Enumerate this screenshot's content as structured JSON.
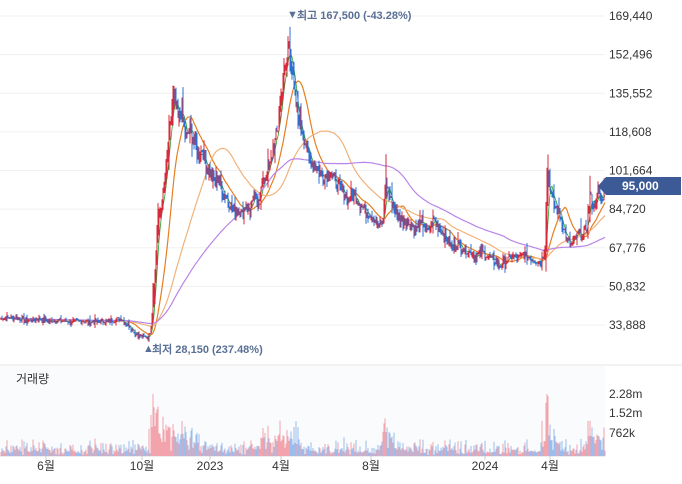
{
  "chart_data": {
    "type": "candlestick",
    "y_ticks": [
      "169,440",
      "152,496",
      "135,552",
      "118,608",
      "101,664",
      "84,720",
      "67,776",
      "50,832",
      "33,888"
    ],
    "y_values": [
      169440,
      152496,
      135552,
      118608,
      101664,
      84720,
      67776,
      50832,
      33888
    ],
    "x_ticks": [
      "6월",
      "10월",
      "2023",
      "4월",
      "8월",
      "2024",
      "4월"
    ],
    "current_price": "95,000",
    "current_value": 95000,
    "high_label": "최고 167,500 (-43.28%)",
    "high_value": 167500,
    "low_label": "최저 28,150 (237.48%)",
    "low_value": 28150,
    "volume": {
      "label": "거래량",
      "ticks": [
        "2.28m",
        "1.52m",
        "762k"
      ]
    },
    "price_series": [
      [
        0,
        36800
      ],
      [
        10,
        37200
      ],
      [
        20,
        36600
      ],
      [
        30,
        35900
      ],
      [
        40,
        36400
      ],
      [
        50,
        35500
      ],
      [
        60,
        35900
      ],
      [
        70,
        35300
      ],
      [
        80,
        35700
      ],
      [
        90,
        35200
      ],
      [
        100,
        35600
      ],
      [
        110,
        35400
      ],
      [
        115,
        36200
      ],
      [
        120,
        36800
      ],
      [
        125,
        34800
      ],
      [
        130,
        33200
      ],
      [
        135,
        30200
      ],
      [
        140,
        29100
      ],
      [
        145,
        28600
      ],
      [
        148,
        28400
      ],
      [
        150,
        30800
      ],
      [
        152,
        36500
      ],
      [
        155,
        58000
      ],
      [
        158,
        78000
      ],
      [
        162,
        88000
      ],
      [
        166,
        100000
      ],
      [
        170,
        120000
      ],
      [
        174,
        134000
      ],
      [
        178,
        124000
      ],
      [
        182,
        128000
      ],
      [
        186,
        115000
      ],
      [
        190,
        121000
      ],
      [
        194,
        114000
      ],
      [
        198,
        108000
      ],
      [
        202,
        111000
      ],
      [
        206,
        104000
      ],
      [
        210,
        100000
      ],
      [
        214,
        97000
      ],
      [
        218,
        98000
      ],
      [
        222,
        93000
      ],
      [
        226,
        90000
      ],
      [
        230,
        87000
      ],
      [
        234,
        84000
      ],
      [
        238,
        85000
      ],
      [
        242,
        83000
      ],
      [
        246,
        87000
      ],
      [
        250,
        84000
      ],
      [
        254,
        90000
      ],
      [
        258,
        88000
      ],
      [
        262,
        95000
      ],
      [
        266,
        100000
      ],
      [
        270,
        104000
      ],
      [
        274,
        113000
      ],
      [
        278,
        120000
      ],
      [
        282,
        138000
      ],
      [
        286,
        147000
      ],
      [
        289,
        158000
      ],
      [
        292,
        147000
      ],
      [
        296,
        130000
      ],
      [
        300,
        122000
      ],
      [
        304,
        116000
      ],
      [
        308,
        109000
      ],
      [
        312,
        105000
      ],
      [
        318,
        102000
      ],
      [
        324,
        99000
      ],
      [
        330,
        101000
      ],
      [
        336,
        96000
      ],
      [
        342,
        93000
      ],
      [
        348,
        89000
      ],
      [
        354,
        91000
      ],
      [
        360,
        87000
      ],
      [
        366,
        84000
      ],
      [
        372,
        82000
      ],
      [
        378,
        77000
      ],
      [
        383,
        79000
      ],
      [
        386,
        97000
      ],
      [
        390,
        90000
      ],
      [
        394,
        85000
      ],
      [
        398,
        81000
      ],
      [
        404,
        80000
      ],
      [
        410,
        78000
      ],
      [
        416,
        76000
      ],
      [
        422,
        79000
      ],
      [
        428,
        75000
      ],
      [
        434,
        80000
      ],
      [
        440,
        76000
      ],
      [
        446,
        72000
      ],
      [
        452,
        68000
      ],
      [
        458,
        70000
      ],
      [
        464,
        67000
      ],
      [
        470,
        66000
      ],
      [
        476,
        64000
      ],
      [
        482,
        66000
      ],
      [
        488,
        64000
      ],
      [
        494,
        62000
      ],
      [
        500,
        60000
      ],
      [
        506,
        62000
      ],
      [
        512,
        64000
      ],
      [
        518,
        63000
      ],
      [
        524,
        65000
      ],
      [
        530,
        63000
      ],
      [
        536,
        62000
      ],
      [
        541,
        61500
      ],
      [
        545,
        68000
      ],
      [
        548,
        100000
      ],
      [
        551,
        92000
      ],
      [
        555,
        86000
      ],
      [
        559,
        84000
      ],
      [
        563,
        77000
      ],
      [
        567,
        71000
      ],
      [
        571,
        69000
      ],
      [
        575,
        72000
      ],
      [
        579,
        74000
      ],
      [
        583,
        73000
      ],
      [
        587,
        77000
      ],
      [
        590,
        91000
      ],
      [
        594,
        85000
      ],
      [
        598,
        92000
      ],
      [
        602,
        88000
      ],
      [
        605,
        95000
      ]
    ]
  }
}
